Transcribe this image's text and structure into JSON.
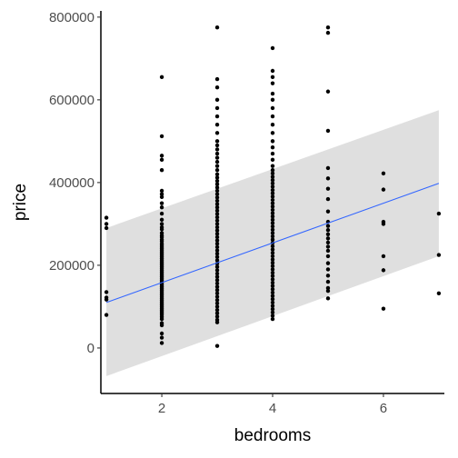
{
  "chart_data": {
    "type": "scatter",
    "title": "",
    "xlabel": "bedrooms",
    "ylabel": "price",
    "xlim": [
      0.9,
      7.1
    ],
    "ylim": [
      -110000,
      815000
    ],
    "x_ticks": [
      2,
      4,
      6
    ],
    "x_tick_labels": [
      "2",
      "4",
      "6"
    ],
    "y_ticks": [
      0,
      200000,
      400000,
      600000,
      800000
    ],
    "y_tick_labels": [
      "0",
      "200000",
      "400000",
      "600000",
      "800000"
    ],
    "grid": false,
    "legend": "none",
    "colors": {
      "points": "#000000",
      "fit_line": "#3366FF",
      "ribbon": "#D9D9D9",
      "axis": "#000000",
      "tick_text": "#4D4D4D"
    },
    "point_series": [
      {
        "x": 1,
        "y": [
          315000,
          300000,
          290000,
          135000,
          122000,
          117000,
          80000
        ]
      },
      {
        "x": 2,
        "y": [
          655000,
          512000,
          465000,
          455000,
          430000,
          380000,
          372000,
          365000,
          350000,
          340000,
          325000,
          310000,
          300000,
          292000,
          287000,
          278000,
          272000,
          268000,
          262000,
          258000,
          252000,
          248000,
          244000,
          240000,
          236000,
          232000,
          228000,
          224000,
          220000,
          216000,
          212000,
          208000,
          204000,
          200000,
          196000,
          192000,
          188000,
          184000,
          180000,
          176000,
          172000,
          168000,
          164000,
          160000,
          156000,
          152000,
          148000,
          144000,
          140000,
          136000,
          132000,
          128000,
          124000,
          120000,
          116000,
          112000,
          108000,
          104000,
          100000,
          96000,
          92000,
          88000,
          84000,
          80000,
          75000,
          70000,
          60000,
          55000,
          35000,
          25000,
          12000
        ]
      },
      {
        "x": 3,
        "y": [
          775000,
          650000,
          630000,
          600000,
          580000,
          560000,
          540000,
          520000,
          500000,
          490000,
          480000,
          470000,
          460000,
          450000,
          440000,
          430000,
          420000,
          412000,
          404000,
          396000,
          388000,
          380000,
          372000,
          364000,
          356000,
          348000,
          340000,
          332000,
          324000,
          316000,
          308000,
          300000,
          292000,
          284000,
          276000,
          268000,
          260000,
          252000,
          244000,
          236000,
          228000,
          220000,
          212000,
          204000,
          196000,
          188000,
          180000,
          172000,
          164000,
          156000,
          148000,
          140000,
          132000,
          124000,
          116000,
          108000,
          100000,
          92000,
          84000,
          76000,
          68000,
          62000,
          5000
        ]
      },
      {
        "x": 4,
        "y": [
          725000,
          670000,
          655000,
          640000,
          615000,
          600000,
          580000,
          560000,
          540000,
          520000,
          500000,
          485000,
          470000,
          455000,
          440000,
          430000,
          422000,
          414000,
          406000,
          398000,
          390000,
          382000,
          374000,
          366000,
          358000,
          350000,
          342000,
          334000,
          326000,
          318000,
          310000,
          302000,
          294000,
          286000,
          278000,
          270000,
          262000,
          254000,
          246000,
          238000,
          230000,
          222000,
          214000,
          206000,
          198000,
          190000,
          182000,
          174000,
          166000,
          158000,
          150000,
          142000,
          134000,
          126000,
          118000,
          110000,
          102000,
          94000,
          86000,
          78000,
          70000
        ]
      },
      {
        "x": 5,
        "y": [
          775000,
          762000,
          620000,
          525000,
          435000,
          410000,
          385000,
          360000,
          330000,
          305000,
          295000,
          285000,
          275000,
          265000,
          255000,
          245000,
          235000,
          222000,
          205000,
          190000,
          175000,
          160000,
          145000,
          138000,
          120000
        ]
      },
      {
        "x": 6,
        "y": [
          422000,
          383000,
          305000,
          300000,
          222000,
          188000,
          95000
        ]
      },
      {
        "x": 7,
        "y": [
          325000,
          225000,
          132000
        ]
      }
    ],
    "fit_line": {
      "x": [
        1,
        7
      ],
      "y": [
        110000,
        398000
      ]
    },
    "confidence_ribbon": {
      "x": [
        1,
        7
      ],
      "lower": [
        -68000,
        222000
      ],
      "upper": [
        290000,
        575000
      ]
    }
  }
}
